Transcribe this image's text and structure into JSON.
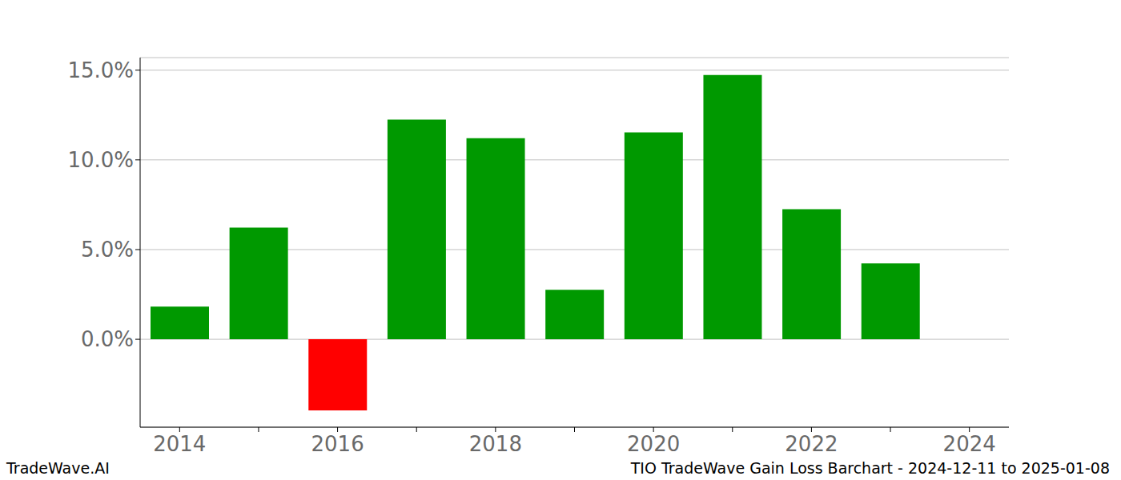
{
  "chart_data": {
    "type": "bar",
    "title": "TIO TradeWave Gain Loss Barchart - 2024-12-11 to 2025-01-08",
    "annotations": [
      "TradeWave.AI"
    ],
    "categories": [
      "2014",
      null,
      "2016",
      null,
      "2018",
      null,
      "2020",
      null,
      "2022",
      null,
      "2024"
    ],
    "values": [
      1.82,
      6.23,
      -3.96,
      12.24,
      11.21,
      2.76,
      11.53,
      14.73,
      7.25,
      4.23,
      null
    ],
    "colors": [
      "#009900",
      "#009900",
      "#ff0000",
      "#009900",
      "#009900",
      "#009900",
      "#009900",
      "#009900",
      "#009900",
      "#009900",
      "#009900"
    ],
    "ylim": [
      -4.9,
      15.7
    ],
    "yticks": [
      {
        "value": 0,
        "label": "0.0%"
      },
      {
        "value": 5,
        "label": "5.0%"
      },
      {
        "value": 10,
        "label": "10.0%"
      },
      {
        "value": 15,
        "label": "15.0%"
      }
    ],
    "grid": true
  }
}
